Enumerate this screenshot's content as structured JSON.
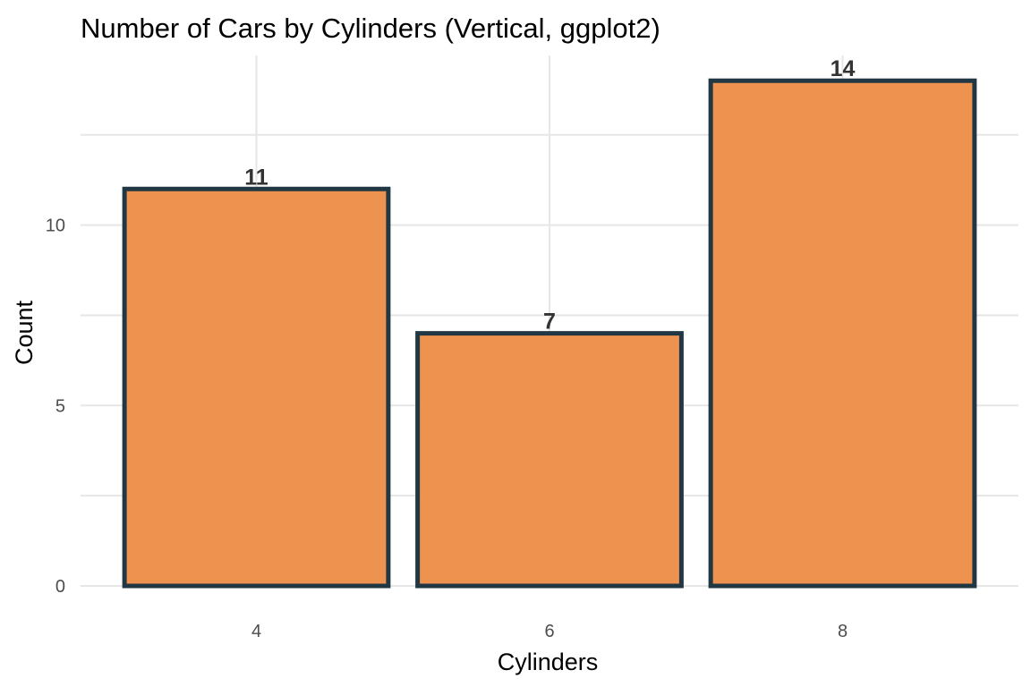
{
  "chart_data": {
    "type": "bar",
    "title": "Number of Cars by Cylinders (Vertical, ggplot2)",
    "xlabel": "Cylinders",
    "ylabel": "Count",
    "categories": [
      "4",
      "6",
      "8"
    ],
    "values": [
      11,
      7,
      14
    ],
    "data_labels": [
      "11",
      "7",
      "14"
    ],
    "y_ticks": [
      0,
      5,
      10
    ],
    "y_tick_labels": [
      "0",
      "5",
      "10"
    ],
    "ylim": [
      0,
      14.7
    ],
    "grid": true,
    "legend": "none",
    "colors": {
      "bar_fill": "#EE924F",
      "bar_outline": "#213844",
      "grid": "#E6E6E6"
    }
  }
}
